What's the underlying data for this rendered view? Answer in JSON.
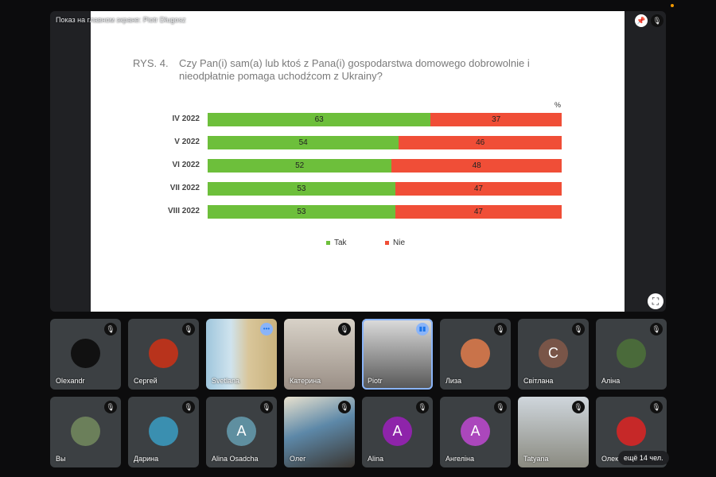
{
  "stage": {
    "caption": "Показ на главном экране: Piotr Długosz"
  },
  "chart_data": {
    "type": "bar",
    "stacked": true,
    "orientation": "horizontal",
    "title_prefix": "RYS. 4.",
    "title": "Czy Pan(i) sam(a) lub ktoś z Pana(i) gospodarstwa domowego dobrowolnie i nieodpłatnie pomaga uchodźcom z Ukrainy?",
    "unit": "%",
    "categories": [
      "IV 2022",
      "V 2022",
      "VI 2022",
      "VII 2022",
      "VIII 2022"
    ],
    "series": [
      {
        "name": "Tak",
        "values": [
          63,
          54,
          52,
          53,
          53
        ],
        "color": "#6dbf3b"
      },
      {
        "name": "Nie",
        "values": [
          37,
          46,
          48,
          47,
          47
        ],
        "color": "#f04e37"
      }
    ],
    "xlim": [
      0,
      100
    ],
    "legend": "bottom"
  },
  "participants": [
    {
      "name": "Olexandr",
      "type": "avatar",
      "color": "#111"
    },
    {
      "name": "Сергей",
      "type": "avatar",
      "color": "#b8331c"
    },
    {
      "name": "Svetlana",
      "type": "video",
      "more": true
    },
    {
      "name": "Катерина",
      "type": "video"
    },
    {
      "name": "Piotr",
      "type": "video",
      "speaking": true
    },
    {
      "name": "Лиза",
      "type": "avatar",
      "color": "#c9734a"
    },
    {
      "name": "Світлана",
      "type": "letter",
      "letter": "С",
      "color": "#795548"
    },
    {
      "name": "Аліна",
      "type": "avatar",
      "color": "#4a6a3a"
    },
    {
      "name": "Вы",
      "type": "avatar",
      "color": "#6b7f5a"
    },
    {
      "name": "Дарина",
      "type": "avatar",
      "color": "#3a8fb0"
    },
    {
      "name": "Alina Osadcha",
      "type": "letter",
      "letter": "A",
      "color": "#5f8fa0"
    },
    {
      "name": "Олег",
      "type": "video"
    },
    {
      "name": "Alina",
      "type": "letter",
      "letter": "A",
      "color": "#8e24aa"
    },
    {
      "name": "Ангеліна",
      "type": "letter",
      "letter": "A",
      "color": "#ab47bc"
    },
    {
      "name": "Tatyana",
      "type": "video"
    },
    {
      "name": "Олек",
      "type": "avatar",
      "color": "#c62828"
    }
  ],
  "more_label": "ещё 14 чел."
}
